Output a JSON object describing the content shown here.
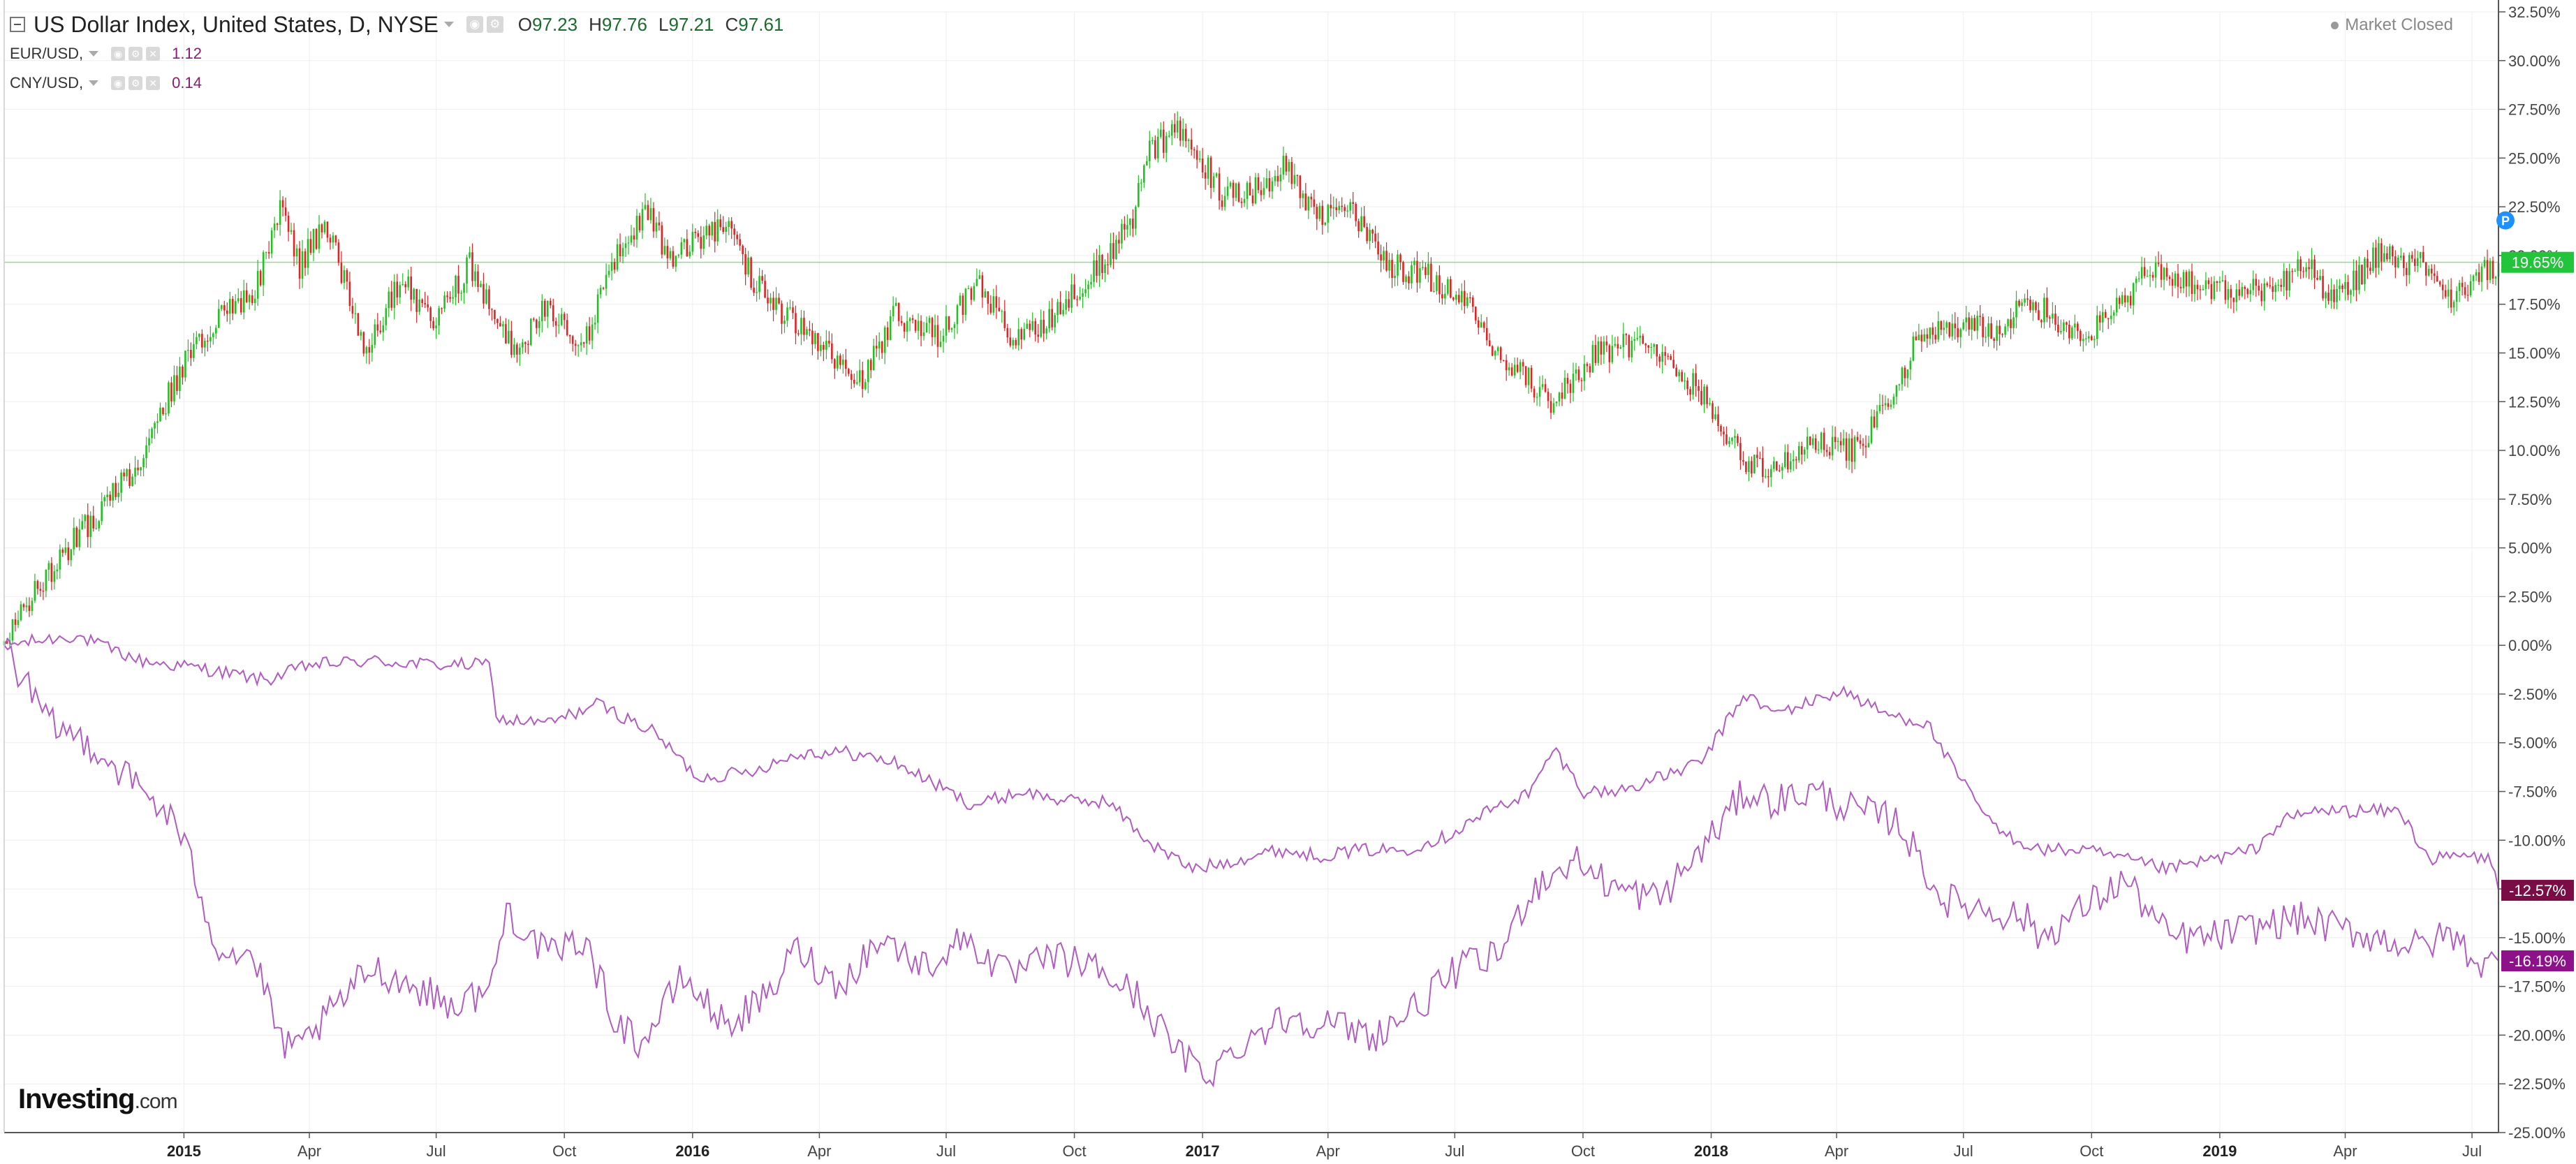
{
  "header": {
    "main_title": "US Dollar Index, United States, D, NYSE",
    "ohlc": [
      {
        "key": "O",
        "value": "97.23"
      },
      {
        "key": "H",
        "value": "97.76"
      },
      {
        "key": "L",
        "value": "97.21"
      },
      {
        "key": "C",
        "value": "97.61"
      }
    ],
    "sub_series": [
      {
        "label": "EUR/USD,",
        "value": "1.12"
      },
      {
        "label": "CNY/USD,",
        "value": "0.14"
      }
    ],
    "market_status": "Market Closed",
    "icons": {
      "collapse": "minus-square-icon",
      "settings": "gear-icon",
      "close": "close-icon",
      "visibility": "eye-icon"
    }
  },
  "logo": {
    "brand": "Investing",
    "domain": ".com"
  },
  "colors": {
    "up_candle": "#22c122",
    "down_candle": "#e02424",
    "series_line": "#b05cc0",
    "price_line": "#8fde8f",
    "last_main_badge": "#22c43a",
    "last_eur_badge": "#7a0d45",
    "last_cny_badge": "#8d1188",
    "prepost_marker": "#1e90ff",
    "grid": "#eeeeee",
    "axis": "#555555"
  },
  "chart_data": {
    "type": "line",
    "subtype": "candlestick with percent-change comparison series",
    "x_tick_labels": [
      "2015",
      "Apr",
      "Jul",
      "Oct",
      "2016",
      "Apr",
      "Jul",
      "Oct",
      "2017",
      "Apr",
      "Jul",
      "Oct",
      "2018",
      "Apr",
      "Jul",
      "Oct",
      "2019",
      "Apr",
      "Jul"
    ],
    "x_year_labels": [
      "2015",
      "2016",
      "2017",
      "2018",
      "2019"
    ],
    "y_tick_labels": [
      "32.50%",
      "30.00%",
      "27.50%",
      "25.00%",
      "22.50%",
      "20.00%",
      "17.50%",
      "15.00%",
      "12.50%",
      "10.00%",
      "7.50%",
      "5.00%",
      "2.50%",
      "0.00%",
      "-2.50%",
      "-5.00%",
      "-7.50%",
      "-10.00%",
      "-12.50%",
      "-15.00%",
      "-17.50%",
      "-20.00%",
      "-22.50%",
      "-25.00%"
    ],
    "ylim": [
      -25.0,
      32.5
    ],
    "x_range": [
      "2014-08-25",
      "2019-07-20"
    ],
    "y_unit": "percent change",
    "grid": true,
    "main_series": {
      "name": "US Dollar Index",
      "kind": "candlestick",
      "last_label": "19.65%",
      "last_value": 19.65,
      "points": [
        [
          "2014-08-25",
          0.0
        ],
        [
          "2014-09-15",
          2.5
        ],
        [
          "2014-10-10",
          5.0
        ],
        [
          "2014-11-05",
          7.2
        ],
        [
          "2014-12-01",
          9.5
        ],
        [
          "2014-12-25",
          13.5
        ],
        [
          "2015-01-20",
          16.5
        ],
        [
          "2015-02-20",
          18.0
        ],
        [
          "2015-03-12",
          22.5
        ],
        [
          "2015-03-25",
          19.5
        ],
        [
          "2015-04-12",
          21.8
        ],
        [
          "2015-05-12",
          15.0
        ],
        [
          "2015-06-05",
          18.8
        ],
        [
          "2015-06-30",
          16.5
        ],
        [
          "2015-07-25",
          19.5
        ],
        [
          "2015-08-25",
          15.0
        ],
        [
          "2015-09-20",
          17.5
        ],
        [
          "2015-10-15",
          15.5
        ],
        [
          "2015-11-05",
          19.5
        ],
        [
          "2015-11-28",
          22.5
        ],
        [
          "2015-12-15",
          20.0
        ],
        [
          "2016-01-25",
          21.5
        ],
        [
          "2016-02-15",
          18.5
        ],
        [
          "2016-03-15",
          16.5
        ],
        [
          "2016-04-05",
          15.0
        ],
        [
          "2016-05-02",
          13.5
        ],
        [
          "2016-05-25",
          17.0
        ],
        [
          "2016-06-25",
          16.0
        ],
        [
          "2016-07-25",
          18.5
        ],
        [
          "2016-08-18",
          15.5
        ],
        [
          "2016-09-15",
          17.0
        ],
        [
          "2016-10-20",
          19.5
        ],
        [
          "2016-11-10",
          21.5
        ],
        [
          "2016-11-25",
          25.5
        ],
        [
          "2016-12-20",
          26.5
        ],
        [
          "2017-01-15",
          23.0
        ],
        [
          "2017-02-15",
          23.5
        ],
        [
          "2017-03-01",
          24.5
        ],
        [
          "2017-03-25",
          22.0
        ],
        [
          "2017-04-15",
          22.5
        ],
        [
          "2017-05-15",
          19.5
        ],
        [
          "2017-06-10",
          19.0
        ],
        [
          "2017-07-10",
          17.5
        ],
        [
          "2017-08-01",
          15.0
        ],
        [
          "2017-09-08",
          12.5
        ],
        [
          "2017-10-10",
          15.0
        ],
        [
          "2017-11-05",
          15.5
        ],
        [
          "2017-12-01",
          14.5
        ],
        [
          "2017-12-25",
          13.0
        ],
        [
          "2018-01-25",
          9.5
        ],
        [
          "2018-02-15",
          8.8
        ],
        [
          "2018-03-10",
          10.5
        ],
        [
          "2018-04-15",
          10.0
        ],
        [
          "2018-05-10",
          12.5
        ],
        [
          "2018-05-28",
          15.5
        ],
        [
          "2018-06-25",
          16.5
        ],
        [
          "2018-07-25",
          16.0
        ],
        [
          "2018-08-15",
          17.8
        ],
        [
          "2018-09-20",
          16.0
        ],
        [
          "2018-10-10",
          16.5
        ],
        [
          "2018-11-12",
          19.2
        ],
        [
          "2018-12-15",
          18.5
        ],
        [
          "2019-01-10",
          18.0
        ],
        [
          "2019-02-10",
          18.5
        ],
        [
          "2019-03-05",
          19.5
        ],
        [
          "2019-03-20",
          17.5
        ],
        [
          "2019-04-25",
          20.0
        ],
        [
          "2019-05-25",
          19.5
        ],
        [
          "2019-06-15",
          17.5
        ],
        [
          "2019-07-05",
          18.8
        ],
        [
          "2019-07-20",
          19.65
        ]
      ]
    },
    "series": [
      {
        "name": "EUR/USD",
        "last_label": "-12.57%",
        "last_value": -12.57,
        "points": [
          [
            "2014-08-25",
            0.0
          ],
          [
            "2014-10-15",
            0.5
          ],
          [
            "2014-12-01",
            -0.8
          ],
          [
            "2015-01-15",
            -1.2
          ],
          [
            "2015-03-01",
            -1.8
          ],
          [
            "2015-04-01",
            -1.0
          ],
          [
            "2015-05-15",
            -0.8
          ],
          [
            "2015-07-01",
            -1.0
          ],
          [
            "2015-08-10",
            -1.0
          ],
          [
            "2015-08-12",
            -3.8
          ],
          [
            "2015-09-20",
            -4.0
          ],
          [
            "2015-10-25",
            -3.0
          ],
          [
            "2015-12-05",
            -4.5
          ],
          [
            "2016-01-05",
            -6.8
          ],
          [
            "2016-02-10",
            -6.5
          ],
          [
            "2016-03-20",
            -5.5
          ],
          [
            "2016-04-20",
            -5.5
          ],
          [
            "2016-05-25",
            -6.0
          ],
          [
            "2016-06-20",
            -7.0
          ],
          [
            "2016-07-20",
            -8.2
          ],
          [
            "2016-08-25",
            -7.5
          ],
          [
            "2016-09-25",
            -8.0
          ],
          [
            "2016-10-25",
            -8.0
          ],
          [
            "2016-11-25",
            -10.2
          ],
          [
            "2016-12-25",
            -11.5
          ],
          [
            "2017-01-25",
            -11.0
          ],
          [
            "2017-02-25",
            -10.5
          ],
          [
            "2017-03-25",
            -10.8
          ],
          [
            "2017-04-25",
            -10.5
          ],
          [
            "2017-05-25",
            -10.5
          ],
          [
            "2017-06-25",
            -9.8
          ],
          [
            "2017-07-25",
            -8.5
          ],
          [
            "2017-08-25",
            -7.5
          ],
          [
            "2017-09-10",
            -5.3
          ],
          [
            "2017-10-01",
            -7.5
          ],
          [
            "2017-10-25",
            -7.5
          ],
          [
            "2017-11-25",
            -6.8
          ],
          [
            "2017-12-25",
            -6.0
          ],
          [
            "2018-01-25",
            -2.5
          ],
          [
            "2018-02-15",
            -3.5
          ],
          [
            "2018-03-10",
            -3.0
          ],
          [
            "2018-04-05",
            -2.3
          ],
          [
            "2018-05-05",
            -3.5
          ],
          [
            "2018-06-05",
            -4.0
          ],
          [
            "2018-06-25",
            -6.5
          ],
          [
            "2018-07-25",
            -9.5
          ],
          [
            "2018-08-25",
            -10.5
          ],
          [
            "2018-09-25",
            -10.5
          ],
          [
            "2018-10-25",
            -11.0
          ],
          [
            "2018-11-25",
            -11.5
          ],
          [
            "2018-12-25",
            -11.0
          ],
          [
            "2019-01-25",
            -10.5
          ],
          [
            "2019-02-15",
            -9.0
          ],
          [
            "2019-03-10",
            -8.5
          ],
          [
            "2019-04-10",
            -8.5
          ],
          [
            "2019-05-10",
            -8.5
          ],
          [
            "2019-06-01",
            -11.0
          ],
          [
            "2019-06-25",
            -10.8
          ],
          [
            "2019-07-15",
            -11.0
          ],
          [
            "2019-07-20",
            -12.57
          ]
        ]
      },
      {
        "name": "CNY/USD",
        "last_label": "-16.19%",
        "last_value": -16.19,
        "points": [
          [
            "2014-08-25",
            0.0
          ],
          [
            "2014-09-25",
            -4.0
          ],
          [
            "2014-10-25",
            -5.0
          ],
          [
            "2014-11-25",
            -7.0
          ],
          [
            "2014-12-25",
            -9.0
          ],
          [
            "2015-01-10",
            -12.0
          ],
          [
            "2015-01-25",
            -15.5
          ],
          [
            "2015-02-20",
            -16.0
          ],
          [
            "2015-03-10",
            -20.0
          ],
          [
            "2015-03-20",
            -21.0
          ],
          [
            "2015-04-15",
            -19.0
          ],
          [
            "2015-05-15",
            -16.5
          ],
          [
            "2015-06-15",
            -17.5
          ],
          [
            "2015-07-15",
            -18.5
          ],
          [
            "2015-08-10",
            -17.5
          ],
          [
            "2015-08-20",
            -13.5
          ],
          [
            "2015-09-20",
            -16.0
          ],
          [
            "2015-10-15",
            -15.0
          ],
          [
            "2015-11-05",
            -19.0
          ],
          [
            "2015-11-25",
            -20.5
          ],
          [
            "2015-12-25",
            -17.0
          ],
          [
            "2016-01-25",
            -19.5
          ],
          [
            "2016-02-25",
            -18.0
          ],
          [
            "2016-03-15",
            -15.5
          ],
          [
            "2016-04-15",
            -17.5
          ],
          [
            "2016-05-15",
            -15.0
          ],
          [
            "2016-06-15",
            -16.5
          ],
          [
            "2016-07-15",
            -15.0
          ],
          [
            "2016-08-15",
            -17.0
          ],
          [
            "2016-09-15",
            -16.0
          ],
          [
            "2016-10-15",
            -16.5
          ],
          [
            "2016-11-15",
            -18.0
          ],
          [
            "2016-12-15",
            -21.0
          ],
          [
            "2017-01-05",
            -22.0
          ],
          [
            "2017-02-05",
            -20.0
          ],
          [
            "2017-03-05",
            -19.0
          ],
          [
            "2017-04-05",
            -19.5
          ],
          [
            "2017-05-05",
            -20.0
          ],
          [
            "2017-06-05",
            -18.5
          ],
          [
            "2017-07-05",
            -16.5
          ],
          [
            "2017-08-01",
            -16.0
          ],
          [
            "2017-08-25",
            -12.5
          ],
          [
            "2017-09-25",
            -11.0
          ],
          [
            "2017-10-25",
            -12.5
          ],
          [
            "2017-11-25",
            -13.0
          ],
          [
            "2017-12-25",
            -10.5
          ],
          [
            "2018-01-25",
            -7.5
          ],
          [
            "2018-02-15",
            -8.0
          ],
          [
            "2018-03-15",
            -7.5
          ],
          [
            "2018-04-15",
            -8.5
          ],
          [
            "2018-05-15",
            -9.0
          ],
          [
            "2018-06-15",
            -13.0
          ],
          [
            "2018-07-15",
            -13.5
          ],
          [
            "2018-08-15",
            -14.0
          ],
          [
            "2018-08-25",
            -15.0
          ],
          [
            "2018-09-25",
            -13.5
          ],
          [
            "2018-10-25",
            -12.0
          ],
          [
            "2018-11-25",
            -15.0
          ],
          [
            "2018-12-25",
            -15.0
          ],
          [
            "2019-01-25",
            -14.5
          ],
          [
            "2019-02-25",
            -14.0
          ],
          [
            "2019-03-25",
            -14.5
          ],
          [
            "2019-04-25",
            -15.0
          ],
          [
            "2019-05-25",
            -15.5
          ],
          [
            "2019-06-15",
            -14.8
          ],
          [
            "2019-07-10",
            -16.5
          ],
          [
            "2019-07-20",
            -16.19
          ]
        ]
      }
    ]
  }
}
